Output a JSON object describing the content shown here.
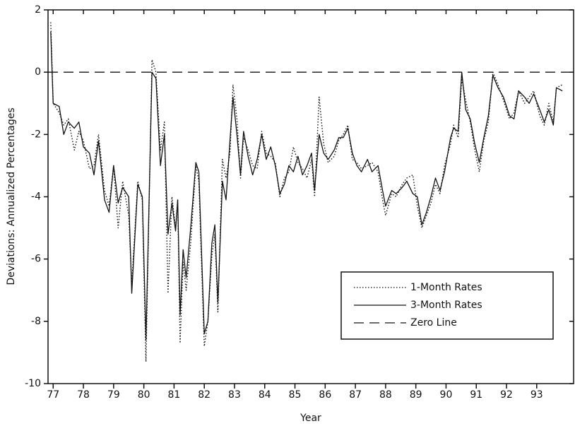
{
  "chart_data": {
    "type": "line",
    "x_label": "Year",
    "y_label": "Deviations: Annualized Percentages",
    "xlim": [
      76.83,
      94.22
    ],
    "ylim": [
      -10,
      2
    ],
    "xticks": [
      77,
      78,
      79,
      80,
      81,
      82,
      83,
      84,
      85,
      86,
      87,
      88,
      89,
      90,
      91,
      92,
      93
    ],
    "yticks": [
      2,
      0,
      -2,
      -4,
      -6,
      -8,
      -10
    ],
    "grid": false,
    "legend": "lower right",
    "x": [
      76.92,
      77.0,
      77.2,
      77.35,
      77.5,
      77.7,
      77.85,
      78.0,
      78.2,
      78.35,
      78.5,
      78.7,
      78.85,
      79.0,
      79.15,
      79.3,
      79.5,
      79.6,
      79.8,
      79.95,
      80.07,
      80.27,
      80.4,
      80.55,
      80.68,
      80.8,
      80.93,
      81.05,
      81.12,
      81.2,
      81.3,
      81.4,
      81.55,
      81.72,
      81.82,
      82.0,
      82.12,
      82.25,
      82.35,
      82.45,
      82.6,
      82.72,
      82.85,
      82.95,
      83.08,
      83.2,
      83.3,
      83.45,
      83.6,
      83.75,
      83.9,
      84.05,
      84.2,
      84.35,
      84.5,
      84.65,
      84.8,
      84.95,
      85.1,
      85.25,
      85.4,
      85.55,
      85.65,
      85.8,
      85.95,
      86.1,
      86.3,
      86.45,
      86.6,
      86.75,
      86.9,
      87.05,
      87.2,
      87.4,
      87.55,
      87.75,
      87.9,
      88.0,
      88.2,
      88.35,
      88.55,
      88.7,
      88.9,
      89.05,
      89.2,
      89.35,
      89.5,
      89.65,
      89.8,
      89.95,
      90.15,
      90.25,
      90.4,
      90.52,
      90.65,
      90.8,
      90.95,
      91.1,
      91.25,
      91.4,
      91.55,
      91.72,
      91.9,
      92.1,
      92.25,
      92.4,
      92.6,
      92.75,
      92.9,
      93.1,
      93.25,
      93.4,
      93.55,
      93.65,
      93.85
    ],
    "series": [
      {
        "name": "1-Month Rates",
        "color": "#111111",
        "dash": "dotted",
        "values": [
          1.6,
          -1.0,
          -1.3,
          -1.7,
          -1.5,
          -2.5,
          -1.9,
          -2.2,
          -3.1,
          -3.0,
          -2.0,
          -3.8,
          -4.3,
          -3.0,
          -5.0,
          -3.5,
          -4.6,
          -6.8,
          -3.5,
          -4.1,
          -9.3,
          0.4,
          0.0,
          -2.5,
          -1.6,
          -7.1,
          -4.0,
          -5.0,
          -4.1,
          -8.7,
          -6.1,
          -7.0,
          -5.5,
          -3.0,
          -3.5,
          -8.8,
          -8.0,
          -5.9,
          -5.2,
          -7.7,
          -2.8,
          -3.4,
          -2.6,
          -0.4,
          -1.5,
          -3.4,
          -2.1,
          -2.5,
          -3.0,
          -3.1,
          -1.9,
          -2.6,
          -2.7,
          -2.9,
          -4.0,
          -3.4,
          -3.2,
          -2.4,
          -2.9,
          -3.1,
          -3.4,
          -2.8,
          -4.0,
          -0.8,
          -2.3,
          -2.9,
          -2.7,
          -2.2,
          -2.0,
          -1.7,
          -2.8,
          -2.9,
          -3.1,
          -3.0,
          -2.9,
          -3.2,
          -4.1,
          -4.6,
          -3.9,
          -4.0,
          -3.6,
          -3.4,
          -3.3,
          -4.3,
          -5.0,
          -4.6,
          -4.2,
          -3.6,
          -3.9,
          -3.0,
          -2.3,
          -1.7,
          -2.1,
          -0.2,
          -0.9,
          -1.6,
          -2.5,
          -3.2,
          -2.2,
          -1.6,
          0.0,
          -0.4,
          -0.9,
          -1.5,
          -1.3,
          -0.6,
          -1.0,
          -0.8,
          -0.6,
          -1.4,
          -1.7,
          -1.0,
          -1.6,
          -0.5,
          -0.4
        ]
      },
      {
        "name": "3-Month Rates",
        "color": "#111111",
        "dash": "solid",
        "values": [
          1.3,
          -1.0,
          -1.1,
          -2.0,
          -1.6,
          -1.8,
          -1.6,
          -2.4,
          -2.6,
          -3.3,
          -2.2,
          -4.1,
          -4.5,
          -3.0,
          -4.2,
          -3.7,
          -4.0,
          -7.1,
          -3.6,
          -4.0,
          -8.6,
          0.0,
          -0.2,
          -3.0,
          -2.0,
          -5.2,
          -4.2,
          -5.1,
          -4.1,
          -7.8,
          -5.7,
          -6.6,
          -5.0,
          -2.9,
          -3.2,
          -8.4,
          -8.0,
          -5.5,
          -4.9,
          -7.4,
          -3.5,
          -4.1,
          -2.2,
          -0.8,
          -2.0,
          -3.3,
          -1.9,
          -2.7,
          -3.3,
          -2.8,
          -2.0,
          -2.8,
          -2.4,
          -3.0,
          -3.9,
          -3.6,
          -3.0,
          -3.2,
          -2.7,
          -3.3,
          -3.0,
          -2.6,
          -3.8,
          -2.0,
          -2.6,
          -2.8,
          -2.5,
          -2.1,
          -2.1,
          -1.8,
          -2.6,
          -3.0,
          -3.2,
          -2.8,
          -3.2,
          -3.0,
          -3.8,
          -4.3,
          -3.8,
          -3.9,
          -3.7,
          -3.5,
          -3.9,
          -4.0,
          -4.9,
          -4.5,
          -4.0,
          -3.4,
          -3.8,
          -3.2,
          -2.1,
          -1.8,
          -1.9,
          0.0,
          -1.2,
          -1.5,
          -2.3,
          -2.9,
          -2.1,
          -1.4,
          -0.1,
          -0.5,
          -0.8,
          -1.4,
          -1.5,
          -0.6,
          -0.8,
          -1.0,
          -0.7,
          -1.2,
          -1.6,
          -1.2,
          -1.7,
          -0.5,
          -0.6
        ]
      }
    ],
    "reference_line": {
      "name": "Zero Line",
      "value": 0,
      "color": "#111111",
      "dash": "dashed"
    }
  }
}
